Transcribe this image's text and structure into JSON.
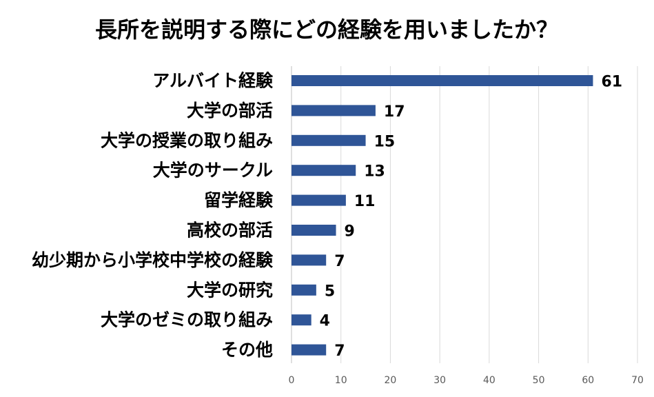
{
  "chart_data": {
    "type": "bar",
    "orientation": "horizontal",
    "title": "長所を説明する際にどの経験を用いましたか？",
    "categories": [
      "アルバイト経験",
      "大学の部活",
      "大学の授業の取り組み",
      "大学のサークル",
      "留学経験",
      "高校の部活",
      "幼少期から小学校中学校の経験",
      "大学の研究",
      "大学のゼミの取り組み",
      "その他"
    ],
    "values": [
      61,
      17,
      15,
      13,
      11,
      9,
      7,
      5,
      4,
      7
    ],
    "xlim": [
      0,
      70
    ],
    "x_ticks": [
      0,
      10,
      20,
      30,
      40,
      50,
      60,
      70
    ],
    "xlabel": "",
    "ylabel": "",
    "grid": "vertical",
    "legend": "none",
    "bar_color": "#2f5597",
    "data_labels": true
  }
}
